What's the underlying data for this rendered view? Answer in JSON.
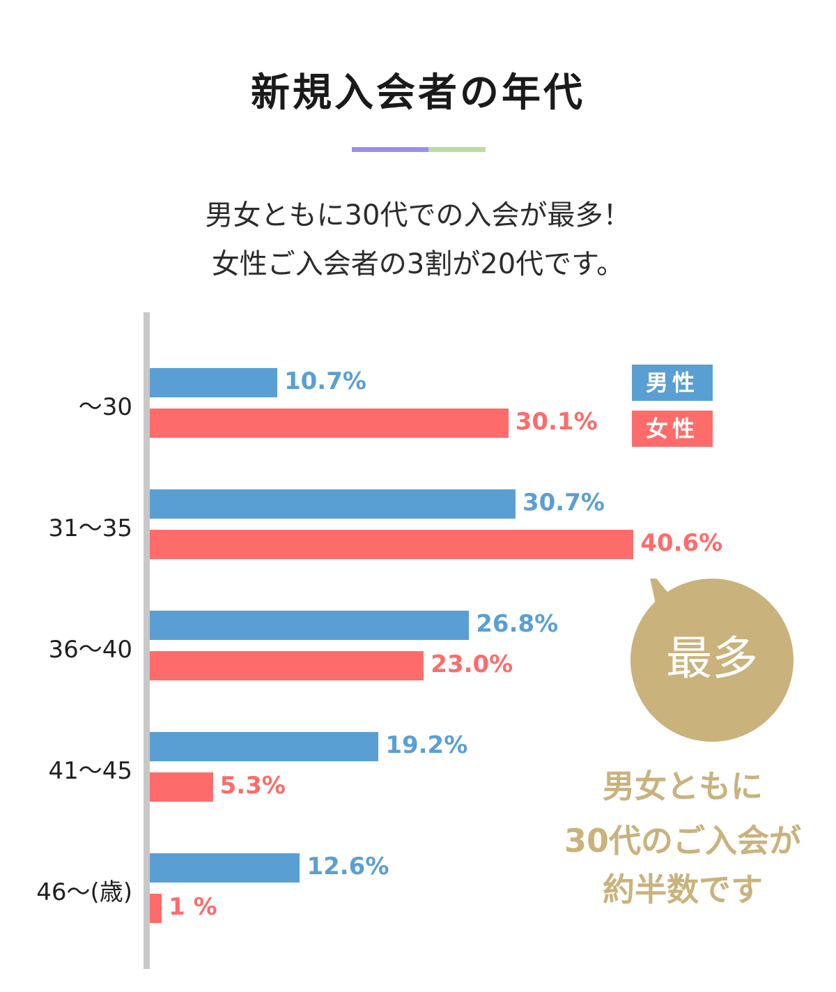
{
  "title": "新規入会者の年代",
  "subtitle": [
    "男女ともに30代での入会が最多！",
    "女性ご入会者の3割が20代です。"
  ],
  "colors": {
    "male": "#5a9fd4",
    "female": "#fe6b6b",
    "accent_gold": "#c9b27c",
    "deco_purple": "#9b8cf0",
    "deco_green": "#b9dca0"
  },
  "legend": {
    "male": "男性",
    "female": "女性"
  },
  "callout": {
    "bubble": "最多",
    "note": [
      "男女ともに",
      "30代のご入会が",
      "約半数です"
    ]
  },
  "chart_data": {
    "type": "bar",
    "orientation": "horizontal",
    "categories": [
      "～30",
      "31～35",
      "36～40",
      "41～45",
      "46～(歳)"
    ],
    "series": [
      {
        "name": "男性",
        "values": [
          10.7,
          30.7,
          26.8,
          19.2,
          12.6
        ],
        "labels": [
          "10.7%",
          "30.7%",
          "26.8%",
          "19.2%",
          "12.6%"
        ]
      },
      {
        "name": "女性",
        "values": [
          30.1,
          40.6,
          23.0,
          5.3,
          1
        ],
        "labels": [
          "30.1%",
          "40.6%",
          "23.0%",
          "5.3%",
          "1 %"
        ]
      }
    ],
    "title": "新規入会者の年代",
    "xlabel": "",
    "ylabel": "",
    "xlim": [
      0,
      45
    ],
    "grid": false,
    "legend_position": "top-right"
  }
}
